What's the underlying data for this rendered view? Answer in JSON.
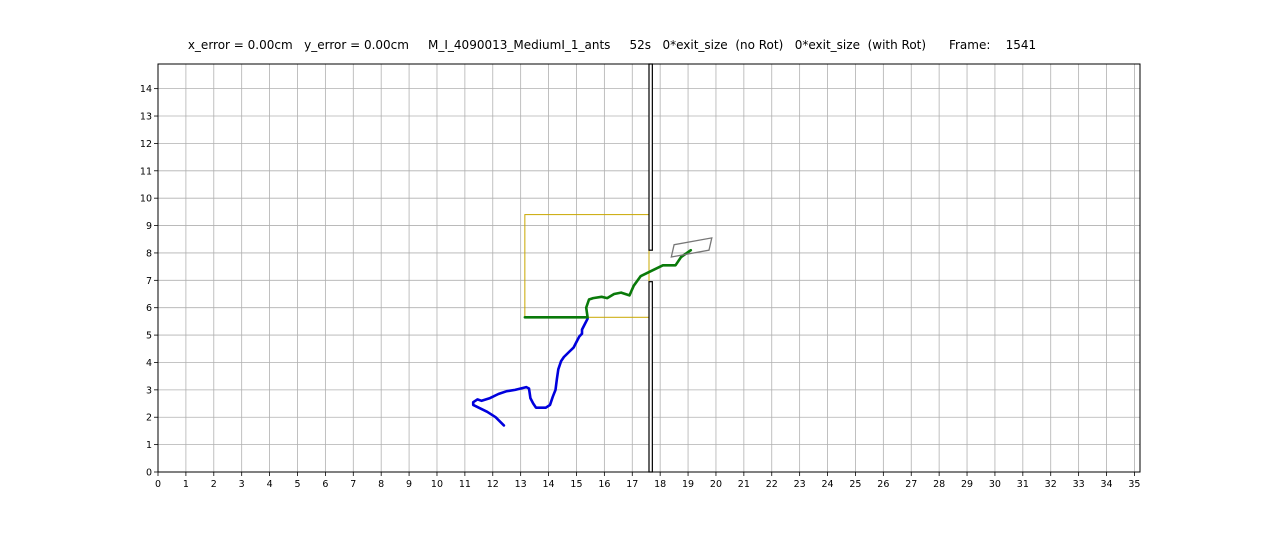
{
  "chart_data": {
    "type": "line",
    "title": "x_error = 0.00cm   y_error = 0.00cm     M_I_4090013_MediumI_1_ants     52s   0*exit_size  (no Rot)   0*exit_size  (with Rot)      Frame:    1541",
    "xlim": [
      0,
      35.2
    ],
    "ylim": [
      0,
      14.9
    ],
    "x_ticks": [
      "0",
      "1",
      "2",
      "3",
      "4",
      "5",
      "6",
      "7",
      "8",
      "9",
      "10",
      "11",
      "12",
      "13",
      "14",
      "15",
      "16",
      "17",
      "18",
      "19",
      "20",
      "21",
      "22",
      "23",
      "24",
      "25",
      "26",
      "27",
      "28",
      "29",
      "30",
      "31",
      "32",
      "33",
      "34",
      "35"
    ],
    "y_ticks": [
      "0",
      "1",
      "2",
      "3",
      "4",
      "5",
      "6",
      "7",
      "8",
      "9",
      "10",
      "11",
      "12",
      "13",
      "14"
    ],
    "grid": true,
    "colors": {
      "blue_trajectory": "#0000dd",
      "green_trajectory": "#0a7a0a",
      "yellow_box": "#c8a800",
      "wall": "#000000",
      "load": "#777777",
      "grid": "#b0b0b0"
    },
    "series": [
      {
        "color": "#0000dd",
        "x": [
          12.4,
          12.1,
          11.8,
          11.5,
          11.3,
          11.3,
          11.45,
          11.6,
          11.9,
          12.2,
          12.5,
          12.8,
          13.0,
          13.2,
          13.3,
          13.35,
          13.45,
          13.55,
          13.7,
          13.9,
          14.05,
          14.15,
          14.25,
          14.3,
          14.35,
          14.45,
          14.55,
          14.75,
          14.9,
          15.0,
          15.1,
          15.2,
          15.2,
          15.3,
          15.4
        ],
        "y": [
          1.7,
          2.0,
          2.2,
          2.35,
          2.45,
          2.55,
          2.65,
          2.6,
          2.7,
          2.85,
          2.95,
          3.0,
          3.05,
          3.1,
          3.05,
          2.7,
          2.5,
          2.35,
          2.35,
          2.35,
          2.45,
          2.75,
          3.0,
          3.4,
          3.75,
          4.05,
          4.2,
          4.4,
          4.55,
          4.75,
          4.95,
          5.05,
          5.2,
          5.4,
          5.6
        ]
      },
      {
        "color": "#0a7a0a",
        "x": [
          13.15,
          15.4,
          15.35,
          15.45,
          15.6,
          15.9,
          16.1,
          16.35,
          16.6,
          16.9,
          17.05,
          17.3,
          17.7,
          18.1,
          18.55,
          18.75,
          19.1
        ],
        "y": [
          5.65,
          5.65,
          6.0,
          6.3,
          6.35,
          6.4,
          6.35,
          6.5,
          6.55,
          6.45,
          6.8,
          7.15,
          7.35,
          7.55,
          7.55,
          7.85,
          8.1
        ]
      }
    ],
    "yellow_box": {
      "x": [
        13.15,
        17.6
      ],
      "y": [
        5.65,
        9.4
      ]
    },
    "wall": {
      "x": [
        17.6,
        17.72
      ],
      "upper_segment_y": [
        8.1,
        14.9
      ],
      "lower_segment_y": [
        0,
        6.95
      ]
    },
    "load_rect_corners": {
      "x": [
        18.4,
        19.75,
        19.85,
        18.5
      ],
      "y": [
        7.85,
        8.1,
        8.55,
        8.3
      ]
    }
  }
}
